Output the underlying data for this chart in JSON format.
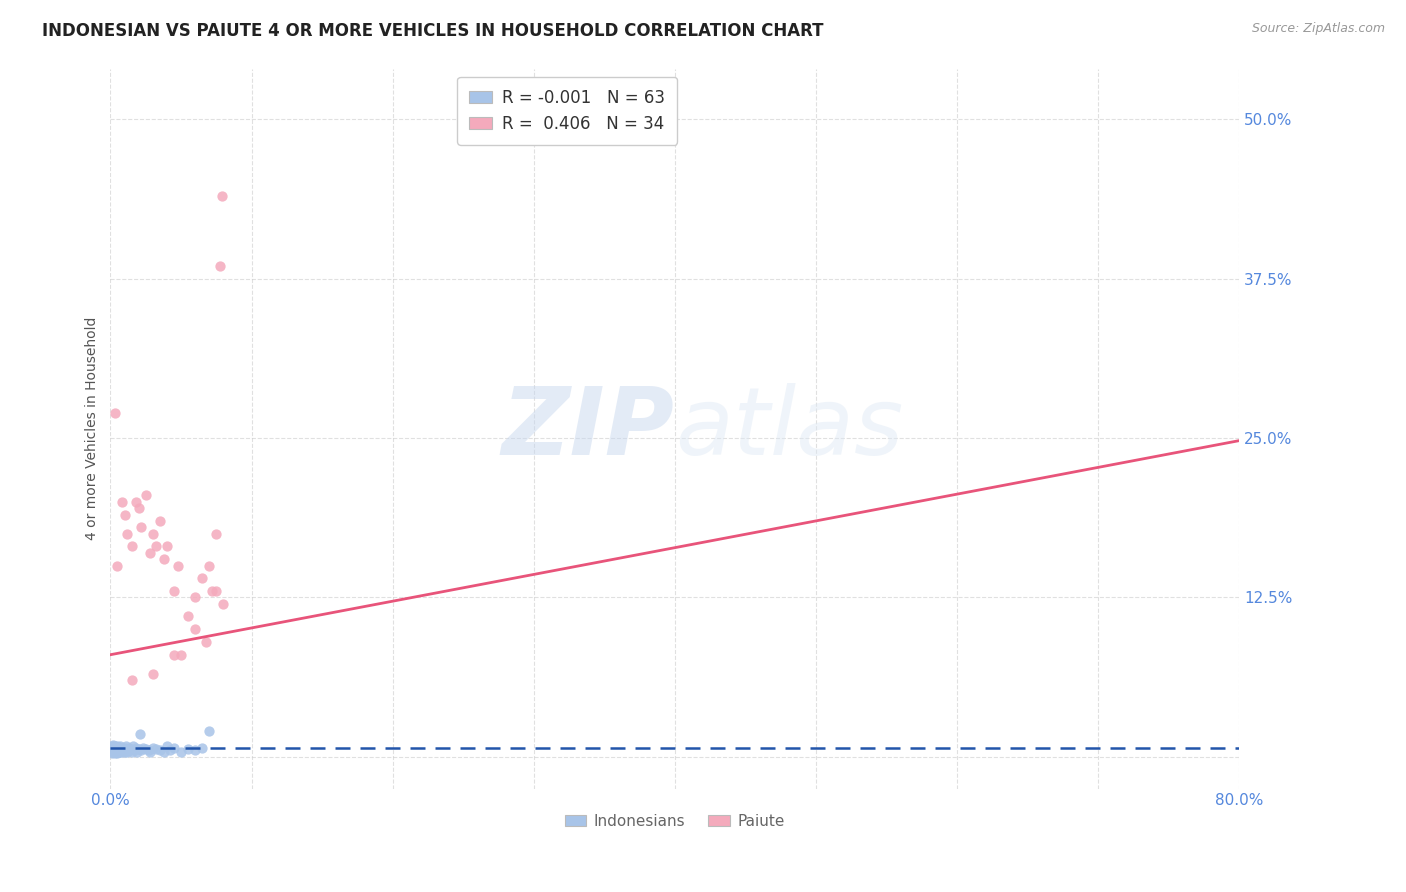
{
  "title": "INDONESIAN VS PAIUTE 4 OR MORE VEHICLES IN HOUSEHOLD CORRELATION CHART",
  "source_text": "Source: ZipAtlas.com",
  "ylabel": "4 or more Vehicles in Household",
  "xlim": [
    0.0,
    0.8
  ],
  "ylim": [
    -0.025,
    0.54
  ],
  "xticks": [
    0.0,
    0.1,
    0.2,
    0.3,
    0.4,
    0.5,
    0.6,
    0.7,
    0.8
  ],
  "xticklabels": [
    "0.0%",
    "",
    "",
    "",
    "",
    "",
    "",
    "",
    "80.0%"
  ],
  "yticks": [
    0.0,
    0.125,
    0.25,
    0.375,
    0.5
  ],
  "yticklabels": [
    "",
    "12.5%",
    "25.0%",
    "37.5%",
    "50.0%"
  ],
  "legend_r_blue": "-0.001",
  "legend_n_blue": "63",
  "legend_r_pink": "0.406",
  "legend_n_pink": "34",
  "watermark_zip": "ZIP",
  "watermark_atlas": "atlas",
  "blue_color": "#a8c4e8",
  "pink_color": "#f4aabc",
  "trendline_blue_color": "#2255aa",
  "trendline_pink_color": "#e8547a",
  "title_color": "#222222",
  "axis_label_color": "#555555",
  "tick_color": "#5588dd",
  "grid_color": "#cccccc",
  "background_color": "#ffffff",
  "indonesians_x": [
    0.001,
    0.001,
    0.001,
    0.002,
    0.002,
    0.002,
    0.002,
    0.002,
    0.003,
    0.003,
    0.003,
    0.003,
    0.004,
    0.004,
    0.004,
    0.005,
    0.005,
    0.005,
    0.005,
    0.006,
    0.006,
    0.006,
    0.007,
    0.007,
    0.007,
    0.008,
    0.008,
    0.008,
    0.009,
    0.009,
    0.01,
    0.01,
    0.011,
    0.011,
    0.012,
    0.012,
    0.013,
    0.014,
    0.014,
    0.015,
    0.016,
    0.017,
    0.018,
    0.019,
    0.02,
    0.021,
    0.022,
    0.023,
    0.025,
    0.027,
    0.028,
    0.03,
    0.032,
    0.035,
    0.038,
    0.04,
    0.042,
    0.045,
    0.05,
    0.055,
    0.06,
    0.065,
    0.07
  ],
  "indonesians_y": [
    0.005,
    0.008,
    0.003,
    0.007,
    0.004,
    0.006,
    0.005,
    0.009,
    0.004,
    0.006,
    0.003,
    0.008,
    0.005,
    0.007,
    0.004,
    0.006,
    0.003,
    0.008,
    0.005,
    0.004,
    0.007,
    0.005,
    0.006,
    0.004,
    0.008,
    0.005,
    0.007,
    0.004,
    0.006,
    0.005,
    0.007,
    0.004,
    0.008,
    0.005,
    0.006,
    0.004,
    0.007,
    0.005,
    0.006,
    0.004,
    0.008,
    0.005,
    0.007,
    0.004,
    0.006,
    0.018,
    0.005,
    0.007,
    0.006,
    0.005,
    0.004,
    0.007,
    0.006,
    0.005,
    0.004,
    0.008,
    0.005,
    0.007,
    0.004,
    0.006,
    0.005,
    0.007,
    0.02
  ],
  "paiute_x": [
    0.003,
    0.005,
    0.008,
    0.01,
    0.012,
    0.015,
    0.018,
    0.02,
    0.022,
    0.025,
    0.028,
    0.03,
    0.032,
    0.035,
    0.038,
    0.04,
    0.045,
    0.048,
    0.05,
    0.055,
    0.06,
    0.065,
    0.068,
    0.07,
    0.072,
    0.075,
    0.078,
    0.079,
    0.08,
    0.075,
    0.06,
    0.045,
    0.03,
    0.015
  ],
  "paiute_y": [
    0.27,
    0.15,
    0.2,
    0.19,
    0.175,
    0.165,
    0.2,
    0.195,
    0.18,
    0.205,
    0.16,
    0.175,
    0.165,
    0.185,
    0.155,
    0.165,
    0.13,
    0.15,
    0.08,
    0.11,
    0.125,
    0.14,
    0.09,
    0.15,
    0.13,
    0.175,
    0.385,
    0.44,
    0.12,
    0.13,
    0.1,
    0.08,
    0.065,
    0.06
  ],
  "trendline_blue_start_y": 0.0065,
  "trendline_blue_end_y": 0.0065,
  "trendline_pink_start_y": 0.08,
  "trendline_pink_end_y": 0.248
}
